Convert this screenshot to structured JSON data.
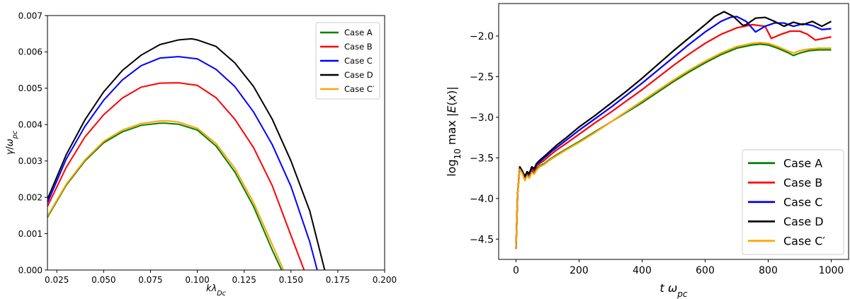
{
  "chart_data": [
    {
      "type": "line",
      "xlabel": "kλ_Dc",
      "ylabel": "γ/ω_pc",
      "xlim": [
        0.02,
        0.2
      ],
      "ylim": [
        0,
        0.007
      ],
      "xticks": [
        "0.025",
        "0.050",
        "0.075",
        "0.100",
        "0.125",
        "0.150",
        "0.175",
        "0.200"
      ],
      "xtick_values": [
        0.025,
        0.05,
        0.075,
        0.1,
        0.125,
        0.15,
        0.175,
        0.2
      ],
      "yticks": [
        "0.000",
        "0.001",
        "0.002",
        "0.003",
        "0.004",
        "0.005",
        "0.006",
        "0.007"
      ],
      "ytick_values": [
        0,
        0.001,
        0.002,
        0.003,
        0.004,
        0.005,
        0.006,
        0.007
      ],
      "legend_position": "top-right",
      "series": [
        {
          "name": "Case A",
          "color": "#008000",
          "x": [
            0.02,
            0.03,
            0.04,
            0.05,
            0.06,
            0.07,
            0.08,
            0.083,
            0.09,
            0.1,
            0.11,
            0.12,
            0.13,
            0.14,
            0.145
          ],
          "y": [
            0.00145,
            0.00233,
            0.003,
            0.0035,
            0.0038,
            0.00398,
            0.00404,
            0.00404,
            0.00401,
            0.00385,
            0.00341,
            0.0027,
            0.00175,
            0.00055,
            0.0
          ]
        },
        {
          "name": "Case B",
          "color": "#ff0000",
          "x": [
            0.02,
            0.03,
            0.04,
            0.05,
            0.06,
            0.07,
            0.08,
            0.09,
            0.1,
            0.11,
            0.12,
            0.13,
            0.14,
            0.15,
            0.157
          ],
          "y": [
            0.00175,
            0.00282,
            0.00366,
            0.00427,
            0.00473,
            0.00503,
            0.00514,
            0.00515,
            0.00508,
            0.00474,
            0.00415,
            0.00337,
            0.00232,
            0.00095,
            0.0
          ]
        },
        {
          "name": "Case C",
          "color": "#0000ff",
          "x": [
            0.02,
            0.03,
            0.04,
            0.05,
            0.06,
            0.07,
            0.08,
            0.09,
            0.1,
            0.11,
            0.12,
            0.13,
            0.14,
            0.15,
            0.16,
            0.164
          ],
          "y": [
            0.00185,
            0.00305,
            0.00395,
            0.00467,
            0.00523,
            0.00562,
            0.00583,
            0.00587,
            0.00581,
            0.00552,
            0.00505,
            0.00435,
            0.00345,
            0.0023,
            0.00078,
            0.0
          ]
        },
        {
          "name": "Case D",
          "color": "#000000",
          "x": [
            0.02,
            0.03,
            0.04,
            0.05,
            0.06,
            0.07,
            0.08,
            0.09,
            0.097,
            0.1,
            0.11,
            0.12,
            0.13,
            0.14,
            0.15,
            0.16,
            0.168
          ],
          "y": [
            0.00195,
            0.00317,
            0.00413,
            0.0049,
            0.00549,
            0.00591,
            0.0062,
            0.00633,
            0.00636,
            0.00633,
            0.00615,
            0.0057,
            0.00505,
            0.00415,
            0.003,
            0.00163,
            0.0
          ]
        },
        {
          "name": "Case C′",
          "color": "#ffa500",
          "x": [
            0.02,
            0.03,
            0.04,
            0.05,
            0.06,
            0.07,
            0.08,
            0.085,
            0.09,
            0.1,
            0.11,
            0.12,
            0.13,
            0.14,
            0.146
          ],
          "y": [
            0.00148,
            0.00236,
            0.00303,
            0.00354,
            0.00385,
            0.00403,
            0.0041,
            0.0041,
            0.00407,
            0.0039,
            0.00348,
            0.0028,
            0.00186,
            0.0007,
            0.0
          ]
        }
      ]
    },
    {
      "type": "line",
      "xlabel": "t ω_pc",
      "ylabel": "log₁₀ max |E(x)|",
      "xlim": [
        -55,
        1055
      ],
      "ylim": [
        -4.75,
        -1.6
      ],
      "xticks": [
        "0",
        "200",
        "400",
        "600",
        "800",
        "1000"
      ],
      "xtick_values": [
        0,
        200,
        400,
        600,
        800,
        1000
      ],
      "yticks": [
        "−4.5",
        "−4.0",
        "−3.5",
        "−3.0",
        "−2.5",
        "−2.0"
      ],
      "ytick_values": [
        -4.5,
        -4.0,
        -3.5,
        -3.0,
        -2.5,
        -2.0
      ],
      "legend_position": "bottom-right",
      "series": [
        {
          "name": "Case A",
          "color": "#008000",
          "x": [
            0,
            5,
            12,
            20,
            28,
            35,
            42,
            50,
            58,
            65,
            75,
            90,
            110,
            130,
            160,
            200,
            250,
            300,
            350,
            400,
            450,
            500,
            550,
            600,
            650,
            700,
            750,
            775,
            800,
            830,
            860,
            880,
            900,
            930,
            960,
            1000
          ],
          "y": [
            -4.62,
            -3.95,
            -3.63,
            -3.68,
            -3.76,
            -3.7,
            -3.73,
            -3.66,
            -3.69,
            -3.63,
            -3.6,
            -3.57,
            -3.51,
            -3.46,
            -3.39,
            -3.3,
            -3.18,
            -3.06,
            -2.94,
            -2.82,
            -2.69,
            -2.56,
            -2.44,
            -2.33,
            -2.23,
            -2.15,
            -2.11,
            -2.1,
            -2.11,
            -2.15,
            -2.2,
            -2.24,
            -2.21,
            -2.18,
            -2.17,
            -2.17
          ]
        },
        {
          "name": "Case B",
          "color": "#ff0000",
          "x": [
            0,
            5,
            12,
            20,
            28,
            35,
            42,
            50,
            58,
            65,
            75,
            90,
            110,
            130,
            160,
            200,
            250,
            300,
            350,
            400,
            450,
            500,
            550,
            600,
            650,
            700,
            750,
            790,
            810,
            840,
            870,
            900,
            925,
            950,
            975,
            1000
          ],
          "y": [
            -4.62,
            -3.95,
            -3.62,
            -3.67,
            -3.75,
            -3.69,
            -3.71,
            -3.64,
            -3.66,
            -3.6,
            -3.57,
            -3.53,
            -3.46,
            -3.4,
            -3.32,
            -3.21,
            -3.07,
            -2.94,
            -2.8,
            -2.66,
            -2.51,
            -2.36,
            -2.22,
            -2.09,
            -1.98,
            -1.9,
            -1.86,
            -1.88,
            -2.03,
            -1.98,
            -1.94,
            -1.94,
            -1.98,
            -2.05,
            -2.03,
            -2.01
          ]
        },
        {
          "name": "Case C",
          "color": "#0000ff",
          "x": [
            0,
            5,
            12,
            20,
            28,
            35,
            42,
            50,
            58,
            65,
            75,
            90,
            110,
            130,
            160,
            200,
            250,
            300,
            350,
            400,
            450,
            500,
            550,
            600,
            650,
            680,
            700,
            730,
            760,
            790,
            820,
            850,
            880,
            910,
            940,
            970,
            1000
          ],
          "y": [
            -4.62,
            -3.95,
            -3.62,
            -3.67,
            -3.74,
            -3.68,
            -3.7,
            -3.62,
            -3.64,
            -3.58,
            -3.55,
            -3.5,
            -3.43,
            -3.37,
            -3.28,
            -3.16,
            -3.02,
            -2.88,
            -2.73,
            -2.58,
            -2.42,
            -2.26,
            -2.1,
            -1.95,
            -1.82,
            -1.77,
            -1.76,
            -1.82,
            -1.95,
            -1.88,
            -1.84,
            -1.84,
            -1.88,
            -1.85,
            -1.87,
            -1.92,
            -1.91
          ]
        },
        {
          "name": "Case D",
          "color": "#000000",
          "x": [
            0,
            5,
            12,
            20,
            28,
            35,
            42,
            50,
            58,
            65,
            75,
            90,
            110,
            130,
            160,
            200,
            250,
            300,
            350,
            400,
            450,
            500,
            550,
            600,
            630,
            660,
            690,
            720,
            730,
            760,
            790,
            820,
            850,
            880,
            910,
            940,
            970,
            1000
          ],
          "y": [
            -4.62,
            -3.95,
            -3.61,
            -3.66,
            -3.73,
            -3.67,
            -3.69,
            -3.61,
            -3.63,
            -3.57,
            -3.53,
            -3.48,
            -3.41,
            -3.34,
            -3.25,
            -3.12,
            -2.98,
            -2.83,
            -2.68,
            -2.52,
            -2.35,
            -2.18,
            -2.02,
            -1.86,
            -1.76,
            -1.7,
            -1.76,
            -1.87,
            -1.86,
            -1.78,
            -1.77,
            -1.82,
            -1.88,
            -1.83,
            -1.86,
            -1.82,
            -1.88,
            -1.82
          ]
        },
        {
          "name": "Case C′",
          "color": "#ffa500",
          "x": [
            0,
            5,
            12,
            20,
            28,
            35,
            42,
            50,
            58,
            65,
            75,
            90,
            110,
            130,
            160,
            200,
            250,
            300,
            350,
            400,
            450,
            500,
            550,
            600,
            650,
            700,
            750,
            775,
            800,
            830,
            860,
            880,
            900,
            930,
            960,
            1000
          ],
          "y": [
            -4.62,
            -3.95,
            -3.64,
            -3.69,
            -3.78,
            -3.72,
            -3.75,
            -3.68,
            -3.7,
            -3.65,
            -3.61,
            -3.58,
            -3.52,
            -3.47,
            -3.4,
            -3.31,
            -3.19,
            -3.06,
            -2.93,
            -2.8,
            -2.67,
            -2.54,
            -2.42,
            -2.31,
            -2.21,
            -2.13,
            -2.09,
            -2.08,
            -2.09,
            -2.13,
            -2.18,
            -2.21,
            -2.18,
            -2.16,
            -2.15,
            -2.15
          ]
        }
      ]
    }
  ]
}
